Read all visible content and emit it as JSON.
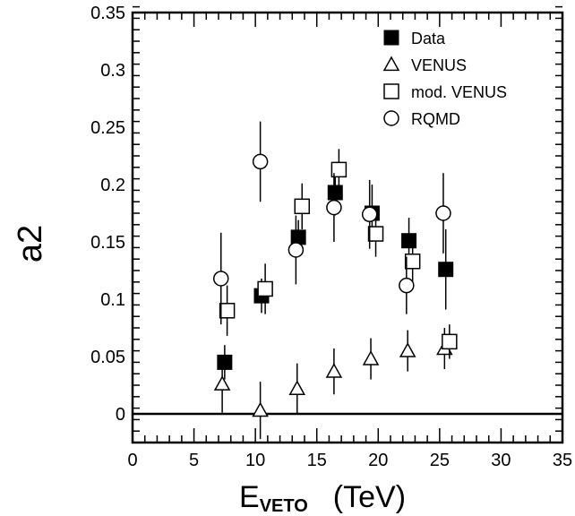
{
  "chart_data": {
    "type": "scatter",
    "xlabel": {
      "main": "E",
      "sub": "VETO",
      "unit": "(TeV)"
    },
    "ylabel": "a2",
    "xlim": [
      0,
      35
    ],
    "ylim": [
      -0.025,
      0.35
    ],
    "x_ticks": [
      "0",
      "5",
      "10",
      "15",
      "20",
      "25",
      "30",
      "35"
    ],
    "y_ticks": [
      "0",
      "0.05",
      "0.1",
      "0.15",
      "0.2",
      "0.25",
      "0.3",
      "0.35"
    ],
    "zero_line": true,
    "grid": false,
    "legend_position": "top-right",
    "series": [
      {
        "name": "Data",
        "marker": "filled-square",
        "points": [
          {
            "x": 7.5,
            "y": 0.045,
            "err": 0.015
          },
          {
            "x": 10.5,
            "y": 0.103,
            "err": 0.015
          },
          {
            "x": 13.5,
            "y": 0.154,
            "err": 0.015
          },
          {
            "x": 16.5,
            "y": 0.193,
            "err": 0.02
          },
          {
            "x": 19.5,
            "y": 0.175,
            "err": 0.025
          },
          {
            "x": 22.5,
            "y": 0.151,
            "err": 0.02
          },
          {
            "x": 25.5,
            "y": 0.126,
            "err": 0.035
          }
        ]
      },
      {
        "name": "VENUS",
        "marker": "open-triangle",
        "points": [
          {
            "x": 7.3,
            "y": 0.026,
            "err": 0.025
          },
          {
            "x": 10.4,
            "y": 0.003,
            "err": 0.025
          },
          {
            "x": 13.4,
            "y": 0.022,
            "err": 0.022
          },
          {
            "x": 16.4,
            "y": 0.037,
            "err": 0.02
          },
          {
            "x": 19.4,
            "y": 0.048,
            "err": 0.018
          },
          {
            "x": 22.4,
            "y": 0.055,
            "err": 0.018
          },
          {
            "x": 25.4,
            "y": 0.057,
            "err": 0.018
          }
        ]
      },
      {
        "name": "mod. VENUS",
        "marker": "open-square",
        "points": [
          {
            "x": 7.7,
            "y": 0.09,
            "err": 0.022
          },
          {
            "x": 10.8,
            "y": 0.109,
            "err": 0.022
          },
          {
            "x": 13.8,
            "y": 0.181,
            "err": 0.02
          },
          {
            "x": 16.8,
            "y": 0.213,
            "err": 0.018
          },
          {
            "x": 19.8,
            "y": 0.157,
            "err": 0.02
          },
          {
            "x": 22.8,
            "y": 0.133,
            "err": 0.02
          },
          {
            "x": 25.8,
            "y": 0.063,
            "err": 0.015
          }
        ]
      },
      {
        "name": "RQMD",
        "marker": "open-circle",
        "points": [
          {
            "x": 7.2,
            "y": 0.118,
            "err": 0.04
          },
          {
            "x": 10.4,
            "y": 0.22,
            "err": 0.035
          },
          {
            "x": 13.3,
            "y": 0.143,
            "err": 0.03
          },
          {
            "x": 16.4,
            "y": 0.18,
            "err": 0.03
          },
          {
            "x": 19.3,
            "y": 0.174,
            "err": 0.03
          },
          {
            "x": 22.3,
            "y": 0.112,
            "err": 0.025
          },
          {
            "x": 25.3,
            "y": 0.175,
            "err": 0.035
          }
        ]
      }
    ]
  }
}
